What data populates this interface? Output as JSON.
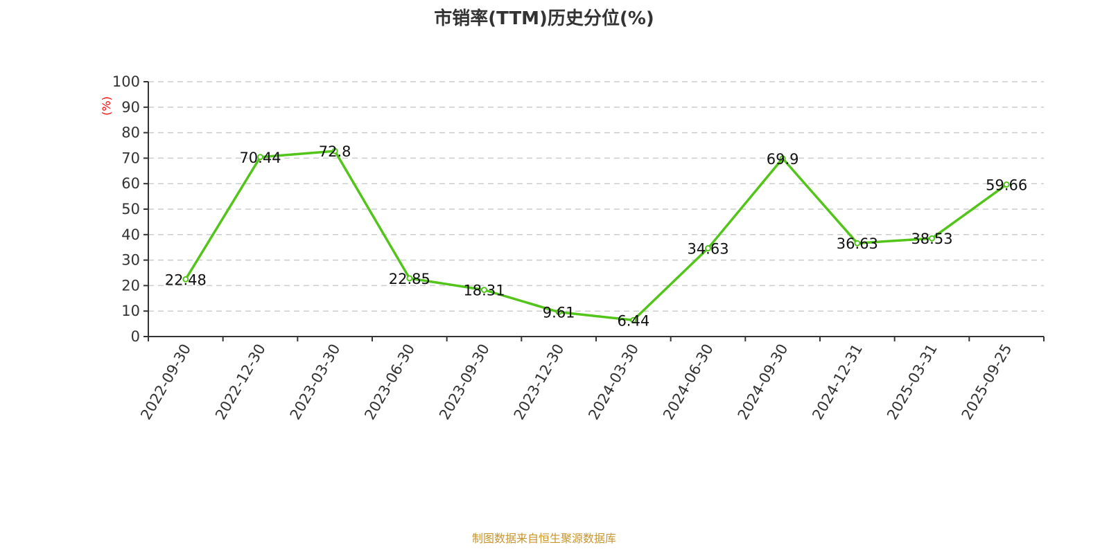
{
  "chart_data": {
    "type": "line",
    "title": "市销率(TTM)历史分位(%)",
    "ylabel": "(%)",
    "categories": [
      "2022-09-30",
      "2022-12-30",
      "2023-03-30",
      "2023-06-30",
      "2023-09-30",
      "2023-12-30",
      "2024-03-30",
      "2024-06-30",
      "2024-09-30",
      "2024-12-31",
      "2025-03-31",
      "2025-09-25"
    ],
    "values": [
      22.48,
      70.44,
      72.8,
      22.85,
      18.31,
      9.61,
      6.44,
      34.63,
      69.9,
      36.63,
      38.53,
      59.66
    ],
    "ylim": [
      0,
      100
    ],
    "yticks": [
      0,
      10,
      20,
      30,
      40,
      50,
      60,
      70,
      80,
      90,
      100
    ],
    "grid": true,
    "line_color": "#52c41a",
    "ylabel_color": "#ff0000"
  },
  "source": "制图数据来自恒生聚源数据库"
}
